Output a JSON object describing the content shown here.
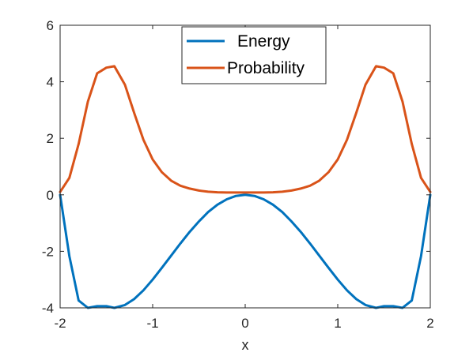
{
  "chart_data": {
    "type": "line",
    "title": "",
    "xlabel": "x",
    "ylabel": "",
    "xlim": [
      -2,
      2
    ],
    "ylim": [
      -4,
      6
    ],
    "xticks": [
      -2,
      -1,
      0,
      1,
      2
    ],
    "yticks": [
      -4,
      -2,
      0,
      2,
      4,
      6
    ],
    "xtick_labels": [
      "-2",
      "-1",
      "0",
      "1",
      "2"
    ],
    "ytick_labels": [
      "-4",
      "-2",
      "0",
      "2",
      "4",
      "6"
    ],
    "grid": false,
    "legend_position": "top-center",
    "x": [
      -2,
      -1.9,
      -1.8,
      -1.7,
      -1.6,
      -1.5,
      -1.414,
      -1.3,
      -1.2,
      -1.1,
      -1.0,
      -0.9,
      -0.8,
      -0.7,
      -0.6,
      -0.5,
      -0.4,
      -0.3,
      -0.2,
      -0.1,
      0,
      0.1,
      0.2,
      0.3,
      0.4,
      0.5,
      0.6,
      0.7,
      0.8,
      0.9,
      1.0,
      1.1,
      1.2,
      1.3,
      1.414,
      1.5,
      1.6,
      1.7,
      1.8,
      1.9,
      2
    ],
    "series": [
      {
        "name": "Energy",
        "color": "#0072BD",
        "values": [
          0,
          -2.17,
          -3.74,
          -4.0,
          -3.94,
          -3.94,
          -4.0,
          -3.9,
          -3.69,
          -3.38,
          -3.0,
          -2.58,
          -2.15,
          -1.72,
          -1.31,
          -0.94,
          -0.61,
          -0.35,
          -0.16,
          -0.04,
          0,
          -0.04,
          -0.16,
          -0.35,
          -0.61,
          -0.94,
          -1.31,
          -1.72,
          -2.15,
          -2.58,
          -3.0,
          -3.38,
          -3.69,
          -3.9,
          -4.0,
          -3.94,
          -3.94,
          -4.0,
          -3.74,
          -2.17,
          0
        ]
      },
      {
        "name": "Probability",
        "color": "#D95319",
        "values": [
          0.1,
          0.6,
          1.8,
          3.3,
          4.3,
          4.5,
          4.55,
          3.9,
          2.9,
          1.95,
          1.25,
          0.8,
          0.5,
          0.32,
          0.22,
          0.15,
          0.11,
          0.09,
          0.08,
          0.08,
          0.08,
          0.08,
          0.08,
          0.09,
          0.11,
          0.15,
          0.22,
          0.32,
          0.5,
          0.8,
          1.25,
          1.95,
          2.9,
          3.9,
          4.55,
          4.5,
          4.3,
          3.3,
          1.8,
          0.6,
          0.1
        ]
      }
    ]
  }
}
